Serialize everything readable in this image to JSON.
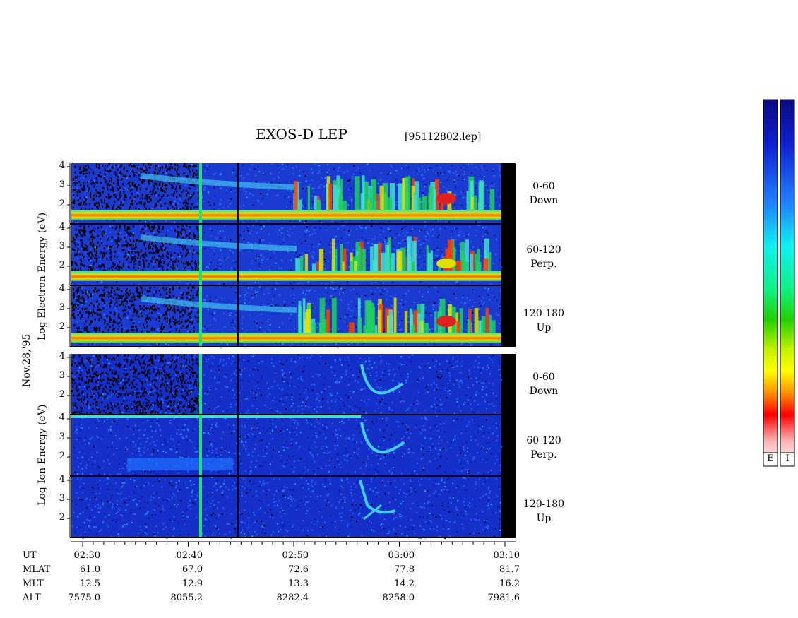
{
  "header": {
    "title": "EXOS-D LEP",
    "file_id": "[95112802.lep]"
  },
  "side_labels": {
    "date": "Nov.28,'95",
    "electron_axis": "Log  Electron  Energy (eV)",
    "ion_axis": "Log  Ion  Energy (eV)"
  },
  "chart_data": {
    "type": "heatmap",
    "title": "EXOS-D LEP",
    "xlabel": "UT",
    "x_ticks": [
      "02:30",
      "02:40",
      "02:50",
      "03:00",
      "03:10"
    ],
    "y_ticks": [
      "4",
      "3",
      "2"
    ],
    "ylabel_electron": "Log Electron Energy (eV)",
    "ylabel_ion": "Log Ion Energy (eV)",
    "panels": [
      {
        "species": "Electron",
        "pitch": "0-60",
        "dir": "Down"
      },
      {
        "species": "Electron",
        "pitch": "60-120",
        "dir": "Perp."
      },
      {
        "species": "Electron",
        "pitch": "120-180",
        "dir": "Up"
      },
      {
        "species": "Ion",
        "pitch": "0-60",
        "dir": "Down"
      },
      {
        "species": "Ion",
        "pitch": "60-120",
        "dir": "Perp."
      },
      {
        "species": "Ion",
        "pitch": "120-180",
        "dir": "Up"
      }
    ],
    "colorbar_labels": [
      "E",
      "I"
    ],
    "colors": {
      "background_dark": "#1a1a9a",
      "mid": "#2a4ff0",
      "cyan": "#20e0e0",
      "green": "#20d020",
      "yellow": "#f0f000",
      "red": "#e00000"
    }
  },
  "orbit": {
    "rows": [
      {
        "key": "UT",
        "values": [
          "02:30",
          "02:40",
          "02:50",
          "03:00",
          "03:10"
        ]
      },
      {
        "key": "MLAT",
        "values": [
          "61.0",
          "67.0",
          "72.6",
          "77.8",
          "81.7"
        ]
      },
      {
        "key": "MLT",
        "values": [
          "12.5",
          "12.9",
          "13.3",
          "14.2",
          "16.2"
        ]
      },
      {
        "key": "ALT",
        "values": [
          "7575.0",
          "8055.2",
          "8282.4",
          "8258.0",
          "7981.6"
        ]
      }
    ]
  }
}
